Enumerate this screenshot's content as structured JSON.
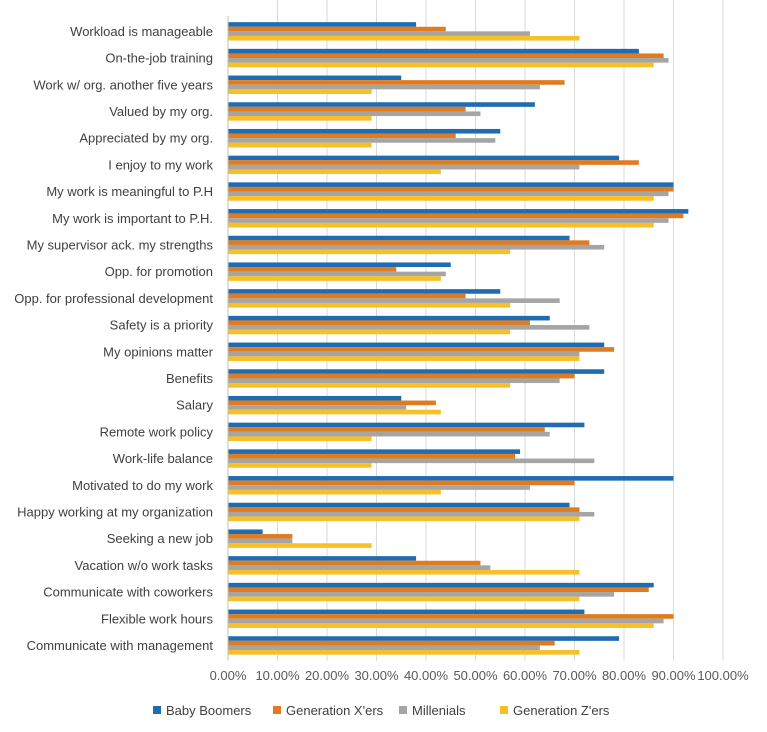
{
  "chart_data": {
    "type": "bar",
    "orientation": "horizontal",
    "title": "",
    "xlabel": "",
    "ylabel": "",
    "xlim": [
      0,
      1
    ],
    "grid": true,
    "legend_position": "bottom",
    "categories": [
      "Workload is manageable",
      "On-the-job training",
      "Work w/ org. another five years",
      "Valued by my org.",
      "Appreciated by my org.",
      "I enjoy to my work",
      "My work is meaningful to P.H",
      "My work is important to P.H.",
      "My supervisor ack. my strengths",
      "Opp. for promotion",
      "Opp. for professional development",
      "Safety is a priority",
      "My opinions matter",
      "Benefits",
      "Salary",
      "Remote work policy",
      "Work-life balance",
      "Motivated to do my work",
      "Happy working at my organization",
      "Seeking a new job",
      "Vacation w/o work tasks",
      "Communicate with coworkers",
      "Flexible work hours",
      "Communicate with management"
    ],
    "series": [
      {
        "name": "Baby Boomers",
        "color": "#1f6cb0",
        "values": [
          0.38,
          0.83,
          0.35,
          0.62,
          0.55,
          0.79,
          0.9,
          0.93,
          0.69,
          0.45,
          0.55,
          0.65,
          0.76,
          0.76,
          0.35,
          0.72,
          0.59,
          0.9,
          0.69,
          0.07,
          0.38,
          0.86,
          0.72,
          0.79
        ]
      },
      {
        "name": "Generation X'ers",
        "color": "#e07b1f",
        "values": [
          0.44,
          0.88,
          0.68,
          0.48,
          0.46,
          0.83,
          0.9,
          0.92,
          0.73,
          0.34,
          0.48,
          0.61,
          0.78,
          0.7,
          0.42,
          0.64,
          0.58,
          0.7,
          0.71,
          0.13,
          0.51,
          0.85,
          0.9,
          0.66
        ]
      },
      {
        "name": "Millenials",
        "color": "#a5a5a5",
        "values": [
          0.61,
          0.89,
          0.63,
          0.51,
          0.54,
          0.71,
          0.89,
          0.89,
          0.76,
          0.44,
          0.67,
          0.73,
          0.71,
          0.67,
          0.36,
          0.65,
          0.74,
          0.61,
          0.74,
          0.13,
          0.53,
          0.78,
          0.88,
          0.63
        ]
      },
      {
        "name": "Generation Z'ers",
        "color": "#f6c026",
        "values": [
          0.71,
          0.86,
          0.29,
          0.29,
          0.29,
          0.43,
          0.86,
          0.86,
          0.57,
          0.43,
          0.57,
          0.57,
          0.71,
          0.57,
          0.43,
          0.29,
          0.29,
          0.43,
          0.71,
          0.29,
          0.71,
          0.71,
          0.86,
          0.71
        ]
      }
    ],
    "x_ticks": [
      0,
      0.1,
      0.2,
      0.3,
      0.4,
      0.5,
      0.6,
      0.7,
      0.8,
      0.9,
      1.0
    ],
    "x_tick_labels": [
      "0.00%",
      "10.00%",
      "20.00%",
      "30.00%",
      "40.00%",
      "50.00%",
      "60.00%",
      "70.00%",
      "80.00%",
      "90.00%",
      "100.00%"
    ]
  }
}
